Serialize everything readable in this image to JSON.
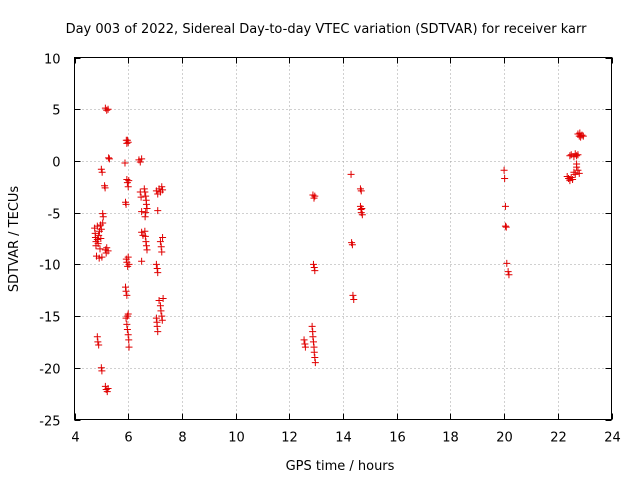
{
  "chart_data": {
    "type": "scatter",
    "title": "Day 003 of 2022, Sidereal Day-to-day VTEC variation (SDTVAR) for receiver karr",
    "xlabel": "GPS time / hours",
    "ylabel": "SDTVAR / TECUs",
    "xlim": [
      4,
      24
    ],
    "ylim": [
      -25,
      10
    ],
    "xticks": [
      4,
      6,
      8,
      10,
      12,
      14,
      16,
      18,
      20,
      22,
      24
    ],
    "yticks": [
      10,
      5,
      0,
      -5,
      -10,
      -15,
      -20,
      -25
    ],
    "xtick_labels": [
      "4",
      "6",
      "8",
      "10",
      "12",
      "14",
      "16",
      "18",
      "20",
      "22",
      "24"
    ],
    "ytick_labels": [
      "10",
      "5",
      "0",
      "-5",
      "-10",
      "-15",
      "-20",
      "-25"
    ],
    "grid": true,
    "marker": "+",
    "color": "#e00000",
    "series": [
      {
        "name": "SDTVAR",
        "points": [
          [
            4.75,
            -6.5
          ],
          [
            4.77,
            -7.0
          ],
          [
            4.78,
            -7.4
          ],
          [
            4.8,
            -7.8
          ],
          [
            4.8,
            -8.2
          ],
          [
            4.82,
            -9.2
          ],
          [
            4.85,
            -6.3
          ],
          [
            4.85,
            -7.6
          ],
          [
            4.88,
            -8.0
          ],
          [
            4.9,
            -7.2
          ],
          [
            4.92,
            -9.4
          ],
          [
            4.93,
            -6.8
          ],
          [
            4.95,
            -8.5
          ],
          [
            4.97,
            -6.2
          ],
          [
            4.98,
            -7.5
          ],
          [
            5.0,
            -6.6
          ],
          [
            5.02,
            -9.3
          ],
          [
            5.05,
            -6.0
          ],
          [
            4.85,
            -17.0
          ],
          [
            4.87,
            -17.5
          ],
          [
            4.9,
            -17.8
          ],
          [
            5.0,
            -20.0
          ],
          [
            5.02,
            -20.3
          ],
          [
            5.0,
            -0.8
          ],
          [
            5.03,
            -1.1
          ],
          [
            5.05,
            -5.1
          ],
          [
            5.07,
            -5.4
          ],
          [
            5.12,
            -2.4
          ],
          [
            5.14,
            -2.6
          ],
          [
            5.15,
            -8.6
          ],
          [
            5.18,
            -8.9
          ],
          [
            5.2,
            -8.4
          ],
          [
            5.25,
            -8.7
          ],
          [
            5.15,
            5.1
          ],
          [
            5.2,
            4.9
          ],
          [
            5.25,
            5.0
          ],
          [
            5.27,
            0.3
          ],
          [
            5.3,
            0.2
          ],
          [
            5.15,
            -21.8
          ],
          [
            5.18,
            -22.1
          ],
          [
            5.22,
            -22.3
          ],
          [
            5.25,
            -22.0
          ],
          [
            5.88,
            -0.2
          ],
          [
            5.9,
            -4.0
          ],
          [
            5.92,
            -4.2
          ],
          [
            5.93,
            2.0
          ],
          [
            5.95,
            1.7
          ],
          [
            5.97,
            2.0
          ],
          [
            6.0,
            1.8
          ],
          [
            5.95,
            -1.8
          ],
          [
            5.97,
            -2.1
          ],
          [
            6.0,
            -2.5
          ],
          [
            6.02,
            -1.9
          ],
          [
            5.9,
            -12.2
          ],
          [
            5.92,
            -12.6
          ],
          [
            5.95,
            -13.0
          ],
          [
            5.93,
            -9.5
          ],
          [
            5.95,
            -9.8
          ],
          [
            5.98,
            -10.2
          ],
          [
            6.0,
            -9.3
          ],
          [
            6.03,
            -10.0
          ],
          [
            5.92,
            -15.2
          ],
          [
            5.95,
            -15.8
          ],
          [
            5.97,
            -16.3
          ],
          [
            6.0,
            -16.8
          ],
          [
            6.02,
            -17.3
          ],
          [
            6.03,
            -18.0
          ],
          [
            5.97,
            -15.0
          ],
          [
            6.0,
            -14.8
          ],
          [
            6.4,
            0.1
          ],
          [
            6.45,
            -0.1
          ],
          [
            6.5,
            0.2
          ],
          [
            6.45,
            -3.0
          ],
          [
            6.48,
            -3.5
          ],
          [
            6.5,
            -4.9
          ],
          [
            6.55,
            -7.2
          ],
          [
            6.5,
            -6.9
          ],
          [
            6.5,
            -9.7
          ],
          [
            6.6,
            -2.7
          ],
          [
            6.62,
            -3.0
          ],
          [
            6.65,
            -3.4
          ],
          [
            6.67,
            -3.8
          ],
          [
            6.68,
            -4.2
          ],
          [
            6.7,
            -4.6
          ],
          [
            6.65,
            -5.0
          ],
          [
            6.63,
            -5.4
          ],
          [
            6.62,
            -6.8
          ],
          [
            6.64,
            -7.3
          ],
          [
            6.66,
            -7.8
          ],
          [
            6.68,
            -8.2
          ],
          [
            6.7,
            -8.6
          ],
          [
            7.05,
            -10.0
          ],
          [
            7.08,
            -10.4
          ],
          [
            7.1,
            -10.8
          ],
          [
            7.05,
            -2.9
          ],
          [
            7.1,
            -3.2
          ],
          [
            7.15,
            -2.7
          ],
          [
            7.2,
            -3.0
          ],
          [
            7.25,
            -2.5
          ],
          [
            7.28,
            -2.8
          ],
          [
            7.1,
            -4.8
          ],
          [
            7.05,
            -15.2
          ],
          [
            7.07,
            -15.6
          ],
          [
            7.08,
            -16.0
          ],
          [
            7.1,
            -16.5
          ],
          [
            7.15,
            -13.5
          ],
          [
            7.2,
            -14.0
          ],
          [
            7.22,
            -14.5
          ],
          [
            7.25,
            -15.0
          ],
          [
            7.27,
            -15.4
          ],
          [
            7.3,
            -13.3
          ],
          [
            7.2,
            -7.8
          ],
          [
            7.23,
            -8.3
          ],
          [
            7.25,
            -8.8
          ],
          [
            7.28,
            -7.4
          ],
          [
            12.55,
            -17.3
          ],
          [
            12.58,
            -17.7
          ],
          [
            12.6,
            -18.0
          ],
          [
            12.85,
            -16.0
          ],
          [
            12.87,
            -16.5
          ],
          [
            12.88,
            -17.0
          ],
          [
            12.9,
            -17.5
          ],
          [
            12.92,
            -18.0
          ],
          [
            12.93,
            -18.5
          ],
          [
            12.95,
            -19.0
          ],
          [
            12.97,
            -19.5
          ],
          [
            12.88,
            -3.3
          ],
          [
            12.92,
            -3.6
          ],
          [
            12.95,
            -3.4
          ],
          [
            12.9,
            -10.0
          ],
          [
            12.93,
            -10.3
          ],
          [
            12.95,
            -10.6
          ],
          [
            14.3,
            -1.3
          ],
          [
            14.32,
            -7.9
          ],
          [
            14.35,
            -8.1
          ],
          [
            14.37,
            -13.0
          ],
          [
            14.4,
            -13.4
          ],
          [
            14.65,
            -2.7
          ],
          [
            14.68,
            -2.9
          ],
          [
            14.65,
            -4.4
          ],
          [
            14.67,
            -4.7
          ],
          [
            14.68,
            -5.0
          ],
          [
            14.7,
            -4.6
          ],
          [
            14.72,
            -5.2
          ],
          [
            20.0,
            -0.9
          ],
          [
            20.02,
            -1.7
          ],
          [
            20.05,
            -4.4
          ],
          [
            20.05,
            -6.3
          ],
          [
            20.08,
            -6.4
          ],
          [
            20.1,
            -9.9
          ],
          [
            20.15,
            -10.7
          ],
          [
            20.18,
            -11.0
          ],
          [
            22.35,
            -1.5
          ],
          [
            22.4,
            -1.7
          ],
          [
            22.45,
            -1.9
          ],
          [
            22.5,
            -1.6
          ],
          [
            22.55,
            -1.8
          ],
          [
            22.45,
            0.5
          ],
          [
            22.5,
            0.6
          ],
          [
            22.6,
            0.4
          ],
          [
            22.65,
            0.7
          ],
          [
            22.7,
            0.5
          ],
          [
            22.75,
            0.6
          ],
          [
            22.6,
            -1.1
          ],
          [
            22.65,
            -1.3
          ],
          [
            22.7,
            -0.6
          ],
          [
            22.75,
            -0.9
          ],
          [
            22.8,
            -1.2
          ],
          [
            22.7,
            -0.3
          ],
          [
            22.75,
            2.6
          ],
          [
            22.8,
            2.4
          ],
          [
            22.85,
            2.3
          ],
          [
            22.9,
            2.5
          ],
          [
            22.95,
            2.4
          ],
          [
            22.82,
            2.7
          ]
        ]
      }
    ]
  }
}
